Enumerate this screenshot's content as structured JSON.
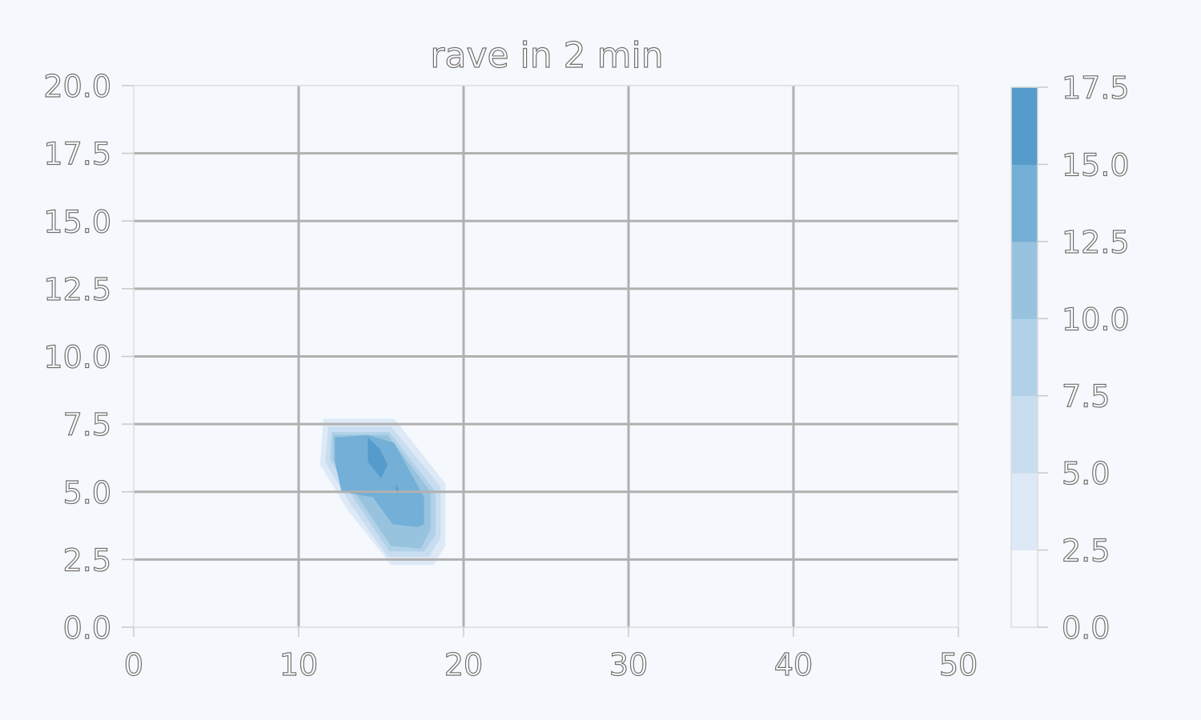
{
  "chart_data": {
    "type": "contourf",
    "title": "rave in 2 min",
    "xlabel": "",
    "ylabel": "",
    "xlim": [
      0,
      50
    ],
    "ylim": [
      0,
      20
    ],
    "x_ticks": [
      0,
      10,
      20,
      30,
      40,
      50
    ],
    "x_tick_labels": [
      "0",
      "10",
      "20",
      "30",
      "40",
      "50"
    ],
    "y_ticks": [
      0,
      2.5,
      5,
      7.5,
      10,
      12.5,
      15,
      17.5,
      20
    ],
    "y_tick_labels": [
      "0.0",
      "2.5",
      "5.0",
      "7.5",
      "10.0",
      "12.5",
      "15.0",
      "17.5",
      "20.0"
    ],
    "grid": true,
    "colorbar": {
      "levels": [
        0,
        2.5,
        5,
        7.5,
        10,
        12.5,
        15,
        17.5
      ],
      "tick_labels": [
        "0.0",
        "2.5",
        "5.0",
        "7.5",
        "10.0",
        "12.5",
        "15.0",
        "17.5"
      ],
      "colors": [
        "#f5f9fd",
        "#dde9f6",
        "#c9ddf0",
        "#b0d1e8",
        "#97c3df",
        "#73afd6",
        "#559bcc"
      ]
    },
    "contour_regions": [
      {
        "level_min": 2.5,
        "level_max": 5.0,
        "color": "#dde9f6",
        "points": [
          [
            11.5,
            7.7
          ],
          [
            15.8,
            7.7
          ],
          [
            18.9,
            5.3
          ],
          [
            18.9,
            3.0
          ],
          [
            18.2,
            2.3
          ],
          [
            15.6,
            2.3
          ],
          [
            13.0,
            4.3
          ],
          [
            11.3,
            6.0
          ]
        ]
      },
      {
        "level_min": 5.0,
        "level_max": 7.5,
        "color": "#c9ddf0",
        "points": [
          [
            11.8,
            7.4
          ],
          [
            15.6,
            7.4
          ],
          [
            18.6,
            5.2
          ],
          [
            18.6,
            3.3
          ],
          [
            17.9,
            2.6
          ],
          [
            15.4,
            2.6
          ],
          [
            13.2,
            4.5
          ],
          [
            11.6,
            6.1
          ]
        ]
      },
      {
        "level_min": 7.5,
        "level_max": 10.0,
        "color": "#b0d1e8",
        "points": [
          [
            12.0,
            7.2
          ],
          [
            15.5,
            7.2
          ],
          [
            18.3,
            5.0
          ],
          [
            18.3,
            3.4
          ],
          [
            17.6,
            2.8
          ],
          [
            15.5,
            2.8
          ],
          [
            13.4,
            4.7
          ],
          [
            11.9,
            6.2
          ]
        ]
      },
      {
        "level_min": 10.0,
        "level_max": 12.5,
        "color": "#97c3df",
        "points": [
          [
            12.1,
            7.1
          ],
          [
            15.4,
            7.1
          ],
          [
            18.0,
            5.0
          ],
          [
            18.0,
            3.6
          ],
          [
            17.4,
            2.9
          ],
          [
            15.6,
            3.0
          ],
          [
            13.6,
            4.8
          ],
          [
            12.1,
            6.2
          ]
        ]
      },
      {
        "level_min": 12.5,
        "level_max": 15.0,
        "color": "#73afd6",
        "points": [
          [
            12.2,
            7.0
          ],
          [
            14.2,
            7.1
          ],
          [
            15.8,
            6.8
          ],
          [
            17.6,
            4.8
          ],
          [
            17.6,
            3.8
          ],
          [
            17.2,
            3.7
          ],
          [
            15.7,
            3.8
          ],
          [
            14.5,
            4.8
          ],
          [
            12.6,
            5.0
          ],
          [
            12.2,
            6.1
          ]
        ]
      },
      {
        "level_min": 15.0,
        "level_max": 17.5,
        "color": "#559bcc",
        "points": [
          [
            14.2,
            7.0
          ],
          [
            14.9,
            6.6
          ],
          [
            15.4,
            6.0
          ],
          [
            15.0,
            5.5
          ],
          [
            14.2,
            6.1
          ]
        ]
      },
      {
        "level_min": 15.0,
        "level_max": 17.5,
        "color": "#559bcc",
        "points": [
          [
            15.9,
            5.3
          ],
          [
            16.1,
            5.0
          ],
          [
            15.9,
            4.9
          ]
        ]
      }
    ]
  }
}
